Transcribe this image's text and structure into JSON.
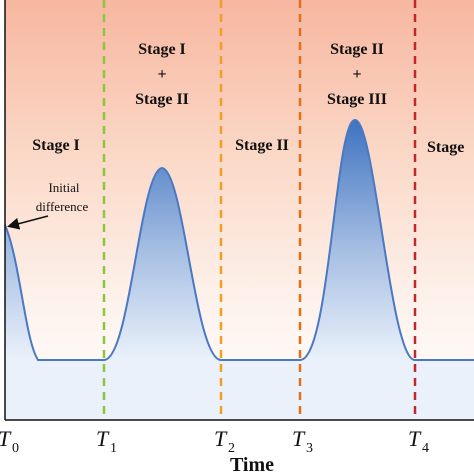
{
  "chart_data": {
    "type": "area",
    "xlabel": "Time",
    "ylabel": "",
    "ticks": [
      {
        "main": "T",
        "sub": "0"
      },
      {
        "main": "T",
        "sub": "1"
      },
      {
        "main": "T",
        "sub": "2"
      },
      {
        "main": "T",
        "sub": "3"
      },
      {
        "main": "T",
        "sub": "4"
      }
    ],
    "markers": [
      {
        "name": "T1",
        "color": "#8cc63f"
      },
      {
        "name": "T2",
        "color": "#f0a020"
      },
      {
        "name": "T3",
        "color": "#e0701a"
      },
      {
        "name": "T4",
        "color": "#c0282a"
      }
    ],
    "stages": {
      "s1": {
        "line1": "Stage I"
      },
      "s2": {
        "line1": "Stage I",
        "plus": "+",
        "line2": "Stage II"
      },
      "s3": {
        "line1": "Stage II"
      },
      "s4": {
        "line1": "Stage II",
        "plus": "+",
        "line2": "Stage III"
      },
      "s5": {
        "line1": "Stage"
      }
    },
    "annotation": {
      "line1": "Initial",
      "line2": "difference"
    }
  }
}
